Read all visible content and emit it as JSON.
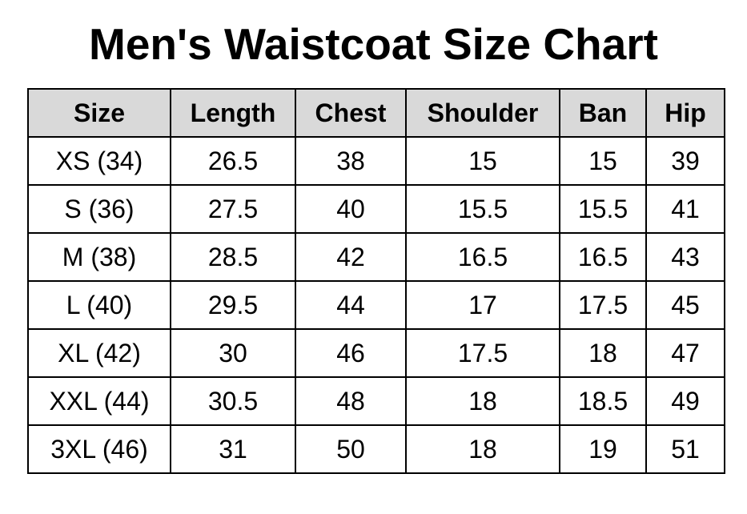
{
  "title": "Men's Waistcoat Size Chart",
  "table": {
    "headers": [
      "Size",
      "Length",
      "Chest",
      "Shoulder",
      "Ban",
      "Hip"
    ],
    "rows": [
      [
        "XS (34)",
        26.5,
        38,
        15,
        15,
        39
      ],
      [
        "S (36)",
        27.5,
        40,
        15.5,
        15.5,
        41
      ],
      [
        "M (38)",
        28.5,
        42,
        16.5,
        16.5,
        43
      ],
      [
        "L (40)",
        29.5,
        44,
        17,
        17.5,
        45
      ],
      [
        "XL (42)",
        30,
        46,
        17.5,
        18,
        47
      ],
      [
        "XXL (44)",
        30.5,
        48,
        18,
        18.5,
        49
      ],
      [
        "3XL (46)",
        31,
        50,
        18,
        19,
        51
      ]
    ]
  }
}
